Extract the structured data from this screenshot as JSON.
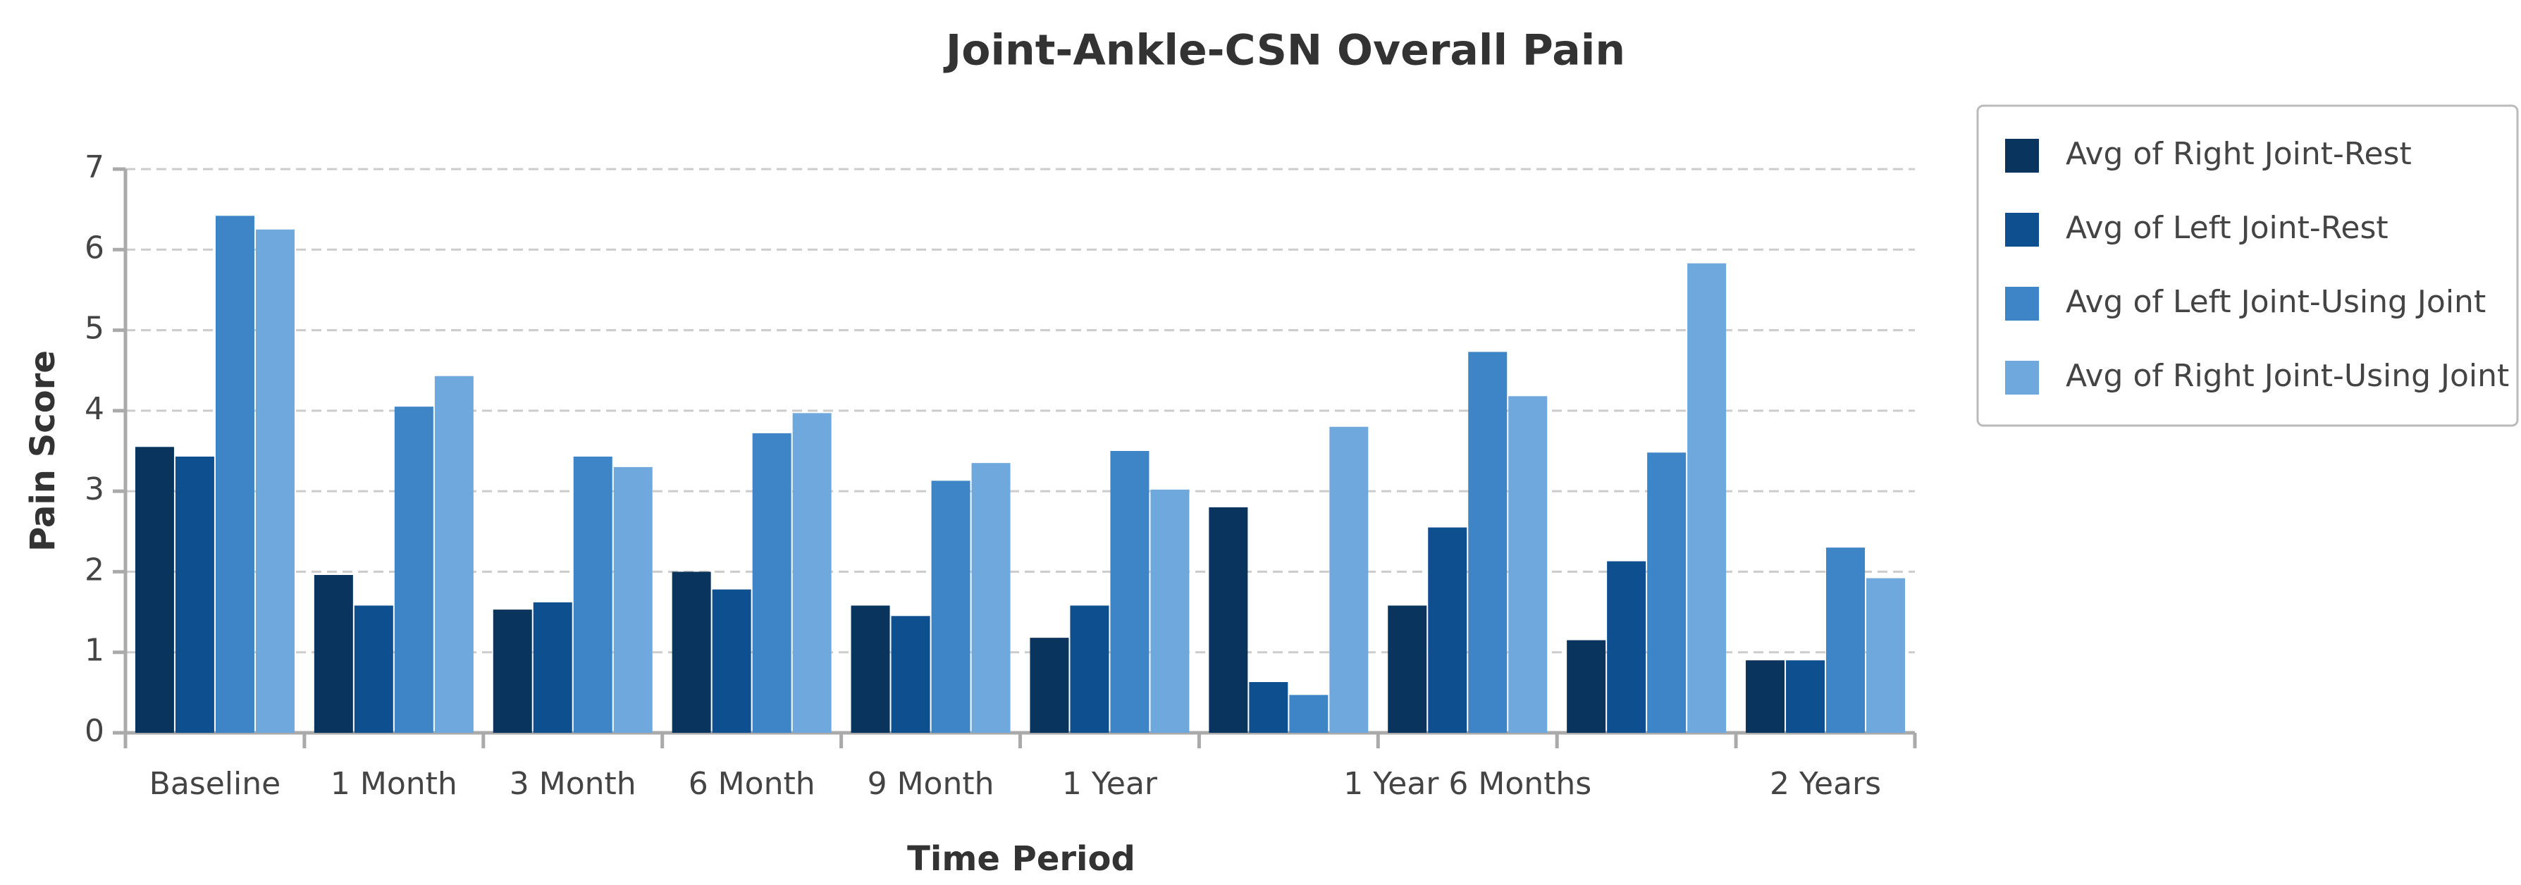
{
  "chart_data": {
    "type": "bar",
    "title": "Joint-Ankle-CSN Overall Pain",
    "x_label": "Time Period",
    "y_label": "Pain Score",
    "categories": [
      "Baseline",
      "1 Month",
      "3 Month",
      "6 Month",
      "9 Month",
      "1 Year",
      null,
      "1 Year 6 Months",
      null,
      "2 Years"
    ],
    "series": [
      {
        "name": "Avg of Right Joint-Rest",
        "color": "#08345e",
        "values": [
          3.55,
          1.96,
          1.53,
          2.0,
          1.58,
          1.18,
          2.8,
          1.58,
          1.15,
          0.9
        ]
      },
      {
        "name": "Avg of Left Joint-Rest",
        "color": "#0d4f8f",
        "values": [
          3.43,
          1.58,
          1.62,
          1.78,
          1.45,
          1.58,
          0.63,
          2.55,
          2.13,
          0.9
        ]
      },
      {
        "name": "Avg of Left Joint-Using Joint",
        "color": "#3d85c6",
        "values": [
          6.42,
          4.05,
          3.43,
          3.72,
          3.13,
          3.5,
          0.47,
          4.73,
          3.48,
          2.3
        ]
      },
      {
        "name": "Avg of Right Joint-Using Joint",
        "color": "#6fa8dc",
        "values": [
          6.25,
          4.43,
          3.3,
          3.97,
          3.35,
          3.02,
          3.8,
          4.18,
          5.83,
          1.92
        ]
      }
    ],
    "ylim": [
      0,
      7
    ],
    "yticks": [
      0,
      1,
      2,
      3,
      4,
      5,
      6,
      7
    ],
    "grid": true,
    "legend": "right"
  }
}
